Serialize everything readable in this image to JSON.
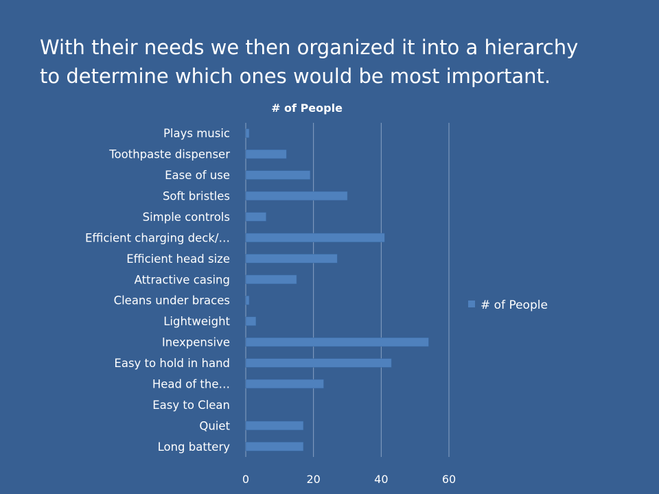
{
  "slide": {
    "title_line1": "With their needs we then organized it into a hierarchy",
    "title_line2": "to determine which ones would be most important."
  },
  "chart_data": {
    "type": "bar",
    "orientation": "horizontal",
    "title": "# of People",
    "categories": [
      "Plays music",
      "Toothpaste dispenser",
      "Ease of use",
      "Soft bristles",
      "Simple controls",
      "Efficient charging deck/…",
      "Efficient head size",
      "Attractive casing",
      "Cleans under braces",
      "Lightweight",
      "Inexpensive",
      "Easy to hold in hand",
      "Head of the…",
      "Easy to Clean",
      "Quiet",
      "Long battery"
    ],
    "series": [
      {
        "name": "# of People",
        "values": [
          1,
          12,
          19,
          30,
          6,
          41,
          27,
          15,
          1,
          3,
          54,
          43,
          23,
          0,
          17,
          17
        ]
      }
    ],
    "xlim": [
      0,
      60
    ],
    "xticks": [
      "0",
      "20",
      "40",
      "60"
    ],
    "grid": "vertical",
    "legend_position": "right",
    "colors": {
      "background": "#375f92",
      "bar": "#4f81bd",
      "bar_edge": "#3a6aa3",
      "grid": "#8aa3c4",
      "text": "#ffffff"
    }
  }
}
